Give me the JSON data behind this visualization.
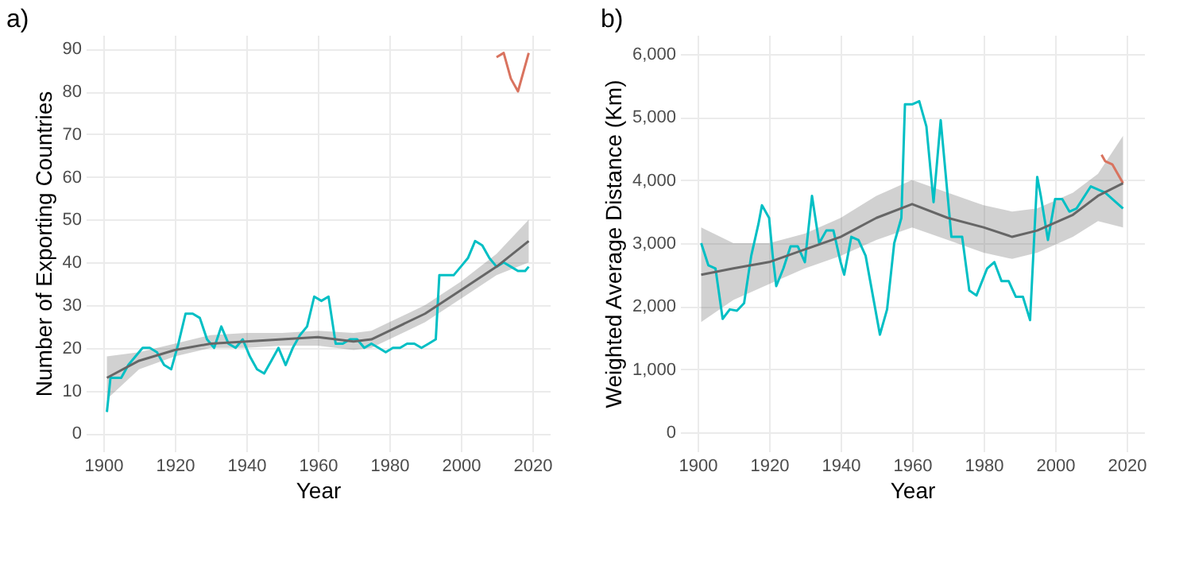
{
  "chart_data": [
    {
      "type": "line",
      "title": "a)",
      "xlabel": "Year",
      "ylabel": "Number of Exporting Countries",
      "xlim": [
        1895.1,
        2024.9
      ],
      "xticks": [
        1900,
        1920,
        1940,
        1960,
        1980,
        2000,
        2020
      ],
      "ylim": [
        -4.2,
        93.2
      ],
      "yticks": [
        0,
        10,
        20,
        30,
        40,
        50,
        60,
        70,
        80,
        90
      ],
      "grid": true,
      "series": [
        {
          "color": "#00bfc4",
          "x": [
            1901,
            1902,
            1905,
            1907,
            1909,
            1911,
            1913,
            1915,
            1917,
            1919,
            1921,
            1923,
            1925,
            1927,
            1929,
            1931,
            1933,
            1935,
            1937,
            1939,
            1941,
            1943,
            1945,
            1947,
            1949,
            1951,
            1953,
            1955,
            1957,
            1959,
            1961,
            1963,
            1965,
            1967,
            1969,
            1971,
            1973,
            1975,
            1977,
            1979,
            1981,
            1983,
            1985,
            1987,
            1989,
            1991,
            1993,
            1994,
            1996,
            1998,
            2000,
            2002,
            2004,
            2006,
            2008,
            2010,
            2012,
            2014,
            2016,
            2018,
            2019
          ],
          "values": [
            5,
            13,
            13,
            16,
            18,
            20,
            20,
            19,
            16,
            15,
            21,
            28,
            28,
            27,
            22,
            20,
            25,
            21,
            20,
            22,
            18,
            15,
            14,
            17,
            20,
            16,
            20,
            23,
            25,
            32,
            31,
            32,
            21,
            21,
            22,
            22,
            20,
            21,
            20,
            19,
            20,
            20,
            21,
            21,
            20,
            21,
            22,
            37,
            37,
            37,
            39,
            41,
            45,
            44,
            41,
            39,
            40,
            39,
            38,
            38,
            39
          ]
        },
        {
          "color": "#d9735f",
          "x": [
            2010,
            2012,
            2014,
            2016,
            2019
          ],
          "values": [
            88,
            89,
            83,
            80,
            89
          ]
        },
        {
          "color": "#666666",
          "x": [
            1901,
            1910,
            1920,
            1930,
            1940,
            1950,
            1960,
            1970,
            1975,
            1980,
            1990,
            2000,
            2010,
            2019
          ],
          "values": [
            13,
            17,
            19.5,
            21,
            21.5,
            22,
            22.5,
            21.5,
            22,
            24,
            28,
            33.5,
            39,
            45
          ],
          "lower": [
            8,
            15,
            18,
            20,
            20,
            20.5,
            20.5,
            19.5,
            20,
            22,
            26,
            31.5,
            37,
            40
          ],
          "upper": [
            18,
            19,
            21,
            23,
            23.5,
            23.5,
            24,
            23.5,
            24,
            26,
            30,
            35.5,
            42,
            50
          ]
        }
      ]
    },
    {
      "type": "line",
      "title": "b)",
      "xlabel": "Year",
      "ylabel": "Weighted Average Distance (Km)",
      "xlim": [
        1895.1,
        2024.9
      ],
      "xticks": [
        1900,
        1920,
        1940,
        1960,
        1980,
        2000,
        2020
      ],
      "ylim": [
        -300,
        6300
      ],
      "yticks": [
        0,
        {
          "value": 1000,
          "label": "1,000"
        },
        {
          "value": 2000,
          "label": "2,000"
        },
        {
          "value": 3000,
          "label": "3,000"
        },
        {
          "value": 4000,
          "label": "4,000"
        },
        {
          "value": 5000,
          "label": "5,000"
        },
        {
          "value": 6000,
          "label": "6,000"
        }
      ],
      "grid": true,
      "series": [
        {
          "color": "#00bfc4",
          "x": [
            1901,
            1903,
            1905,
            1907,
            1909,
            1911,
            1913,
            1915,
            1917,
            1918,
            1920,
            1921,
            1922,
            1924,
            1926,
            1928,
            1930,
            1932,
            1934,
            1936,
            1938,
            1940,
            1941,
            1943,
            1945,
            1947,
            1951,
            1953,
            1955,
            1957,
            1958,
            1960,
            1962,
            1964,
            1966,
            1968,
            1971,
            1974,
            1976,
            1978,
            1981,
            1983,
            1985,
            1987,
            1989,
            1991,
            1993,
            1995,
            1996,
            1998,
            2000,
            2002,
            2004,
            2006,
            2010,
            2014,
            2019
          ],
          "values": [
            3000,
            2650,
            2600,
            1800,
            1950,
            1930,
            2050,
            2800,
            3300,
            3600,
            3400,
            2800,
            2320,
            2600,
            2950,
            2950,
            2700,
            3750,
            3000,
            3200,
            3200,
            2700,
            2500,
            3100,
            3050,
            2800,
            1550,
            1950,
            3000,
            3400,
            5200,
            5200,
            5250,
            4850,
            3650,
            4950,
            3100,
            3100,
            2250,
            2170,
            2600,
            2700,
            2400,
            2400,
            2150,
            2150,
            1780,
            4050,
            3750,
            3050,
            3700,
            3700,
            3500,
            3550,
            3900,
            3800,
            3550
          ]
        },
        {
          "color": "#d9735f",
          "x": [
            2013,
            2014,
            2016,
            2019
          ],
          "values": [
            4400,
            4300,
            4250,
            3950
          ]
        },
        {
          "color": "#666666",
          "x": [
            1901,
            1910,
            1920,
            1930,
            1940,
            1950,
            1960,
            1970,
            1980,
            1988,
            1995,
            2005,
            2012,
            2019
          ],
          "values": [
            2500,
            2600,
            2700,
            2900,
            3100,
            3400,
            3620,
            3400,
            3250,
            3100,
            3200,
            3450,
            3750,
            3950
          ],
          "lower": [
            1750,
            2100,
            2350,
            2600,
            2800,
            3050,
            3250,
            3050,
            2850,
            2750,
            2850,
            3100,
            3350,
            3250
          ],
          "upper": [
            3250,
            3000,
            3000,
            3150,
            3400,
            3750,
            4000,
            3800,
            3600,
            3500,
            3550,
            3800,
            4100,
            4700
          ]
        }
      ]
    }
  ]
}
